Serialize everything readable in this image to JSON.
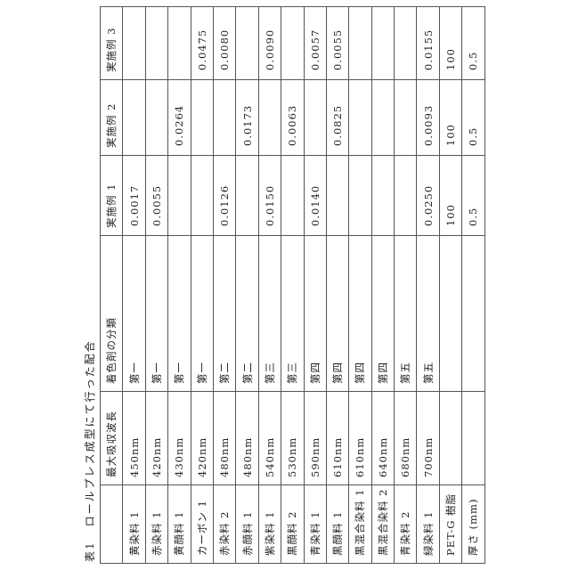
{
  "caption": {
    "label": "表1",
    "title": "ロールプレス成型にて行った配合"
  },
  "headers": [
    "",
    "最大吸収波長",
    "着色剤の分類",
    "実施例 1",
    "実施例 2",
    "実施例 3"
  ],
  "rows": [
    [
      "黄染料 1",
      "450nm",
      "第一",
      "0.0017",
      "",
      ""
    ],
    [
      "赤染料 1",
      "420nm",
      "第一",
      "0.0055",
      "",
      ""
    ],
    [
      "黄顔料 1",
      "430nm",
      "第一",
      "",
      "0.0264",
      ""
    ],
    [
      "カーボン 1",
      "420nm",
      "第一",
      "",
      "",
      "0.0475"
    ],
    [
      "赤染料 2",
      "480nm",
      "第二",
      "0.0126",
      "",
      "0.0080"
    ],
    [
      "赤顔料 1",
      "480nm",
      "第二",
      "",
      "0.0173",
      ""
    ],
    [
      "紫染料 1",
      "540nm",
      "第三",
      "0.0150",
      "",
      "0.0090"
    ],
    [
      "黒顔料 2",
      "530nm",
      "第三",
      "",
      "0.0063",
      ""
    ],
    [
      "青染料 1",
      "590nm",
      "第四",
      "0.0140",
      "",
      "0.0057"
    ],
    [
      "黒顔料 1",
      "610nm",
      "第四",
      "",
      "0.0825",
      "0.0055"
    ],
    [
      "黒混合染料 1",
      "610nm",
      "第四",
      "",
      "",
      ""
    ],
    [
      "黒混合染料 2",
      "640nm",
      "第四",
      "",
      "",
      ""
    ],
    [
      "青染料 2",
      "680nm",
      "第五",
      "",
      "",
      ""
    ],
    [
      "緑染料 1",
      "700nm",
      "第五",
      "0.0250",
      "0.0093",
      "0.0155"
    ],
    [
      "PET-G 樹脂",
      "",
      "",
      "100",
      "100",
      "100"
    ],
    [
      "厚さ (mm)",
      "",
      "",
      "0.5",
      "0.5",
      "0.5"
    ]
  ]
}
